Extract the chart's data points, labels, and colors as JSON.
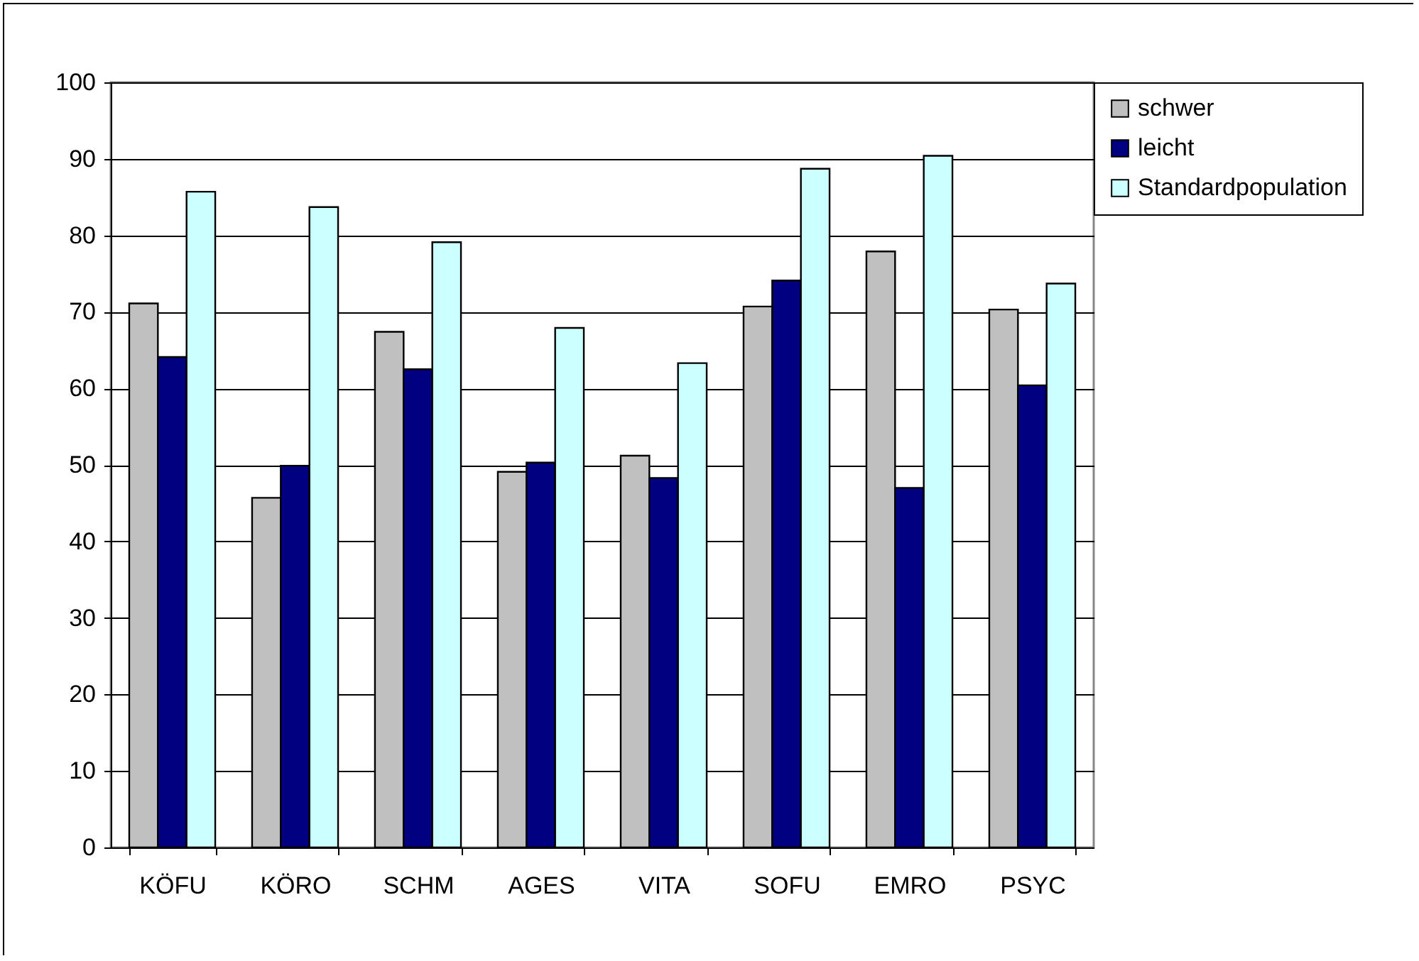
{
  "chart_data": {
    "type": "bar",
    "categories": [
      "KÖFU",
      "KÖRO",
      "SCHM",
      "AGES",
      "VITA",
      "SOFU",
      "EMRO",
      "PSYC"
    ],
    "series": [
      {
        "name": "schwer",
        "color": "#c0c0c0",
        "values": [
          71.1,
          45.7,
          67.4,
          49.1,
          51.2,
          70.7,
          77.9,
          70.3
        ]
      },
      {
        "name": "leicht",
        "color": "#000080",
        "values": [
          64.1,
          49.9,
          62.5,
          50.3,
          48.3,
          74.1,
          47.0,
          60.4
        ]
      },
      {
        "name": "Standardpopulation",
        "color": "#ccffff",
        "values": [
          85.7,
          83.7,
          79.1,
          67.9,
          63.3,
          88.7,
          90.4,
          73.7
        ]
      }
    ],
    "ylim": [
      0,
      100
    ],
    "yticks": [
      0,
      10,
      20,
      30,
      40,
      50,
      60,
      70,
      80,
      90,
      100
    ],
    "grid": "y",
    "legend": "right"
  }
}
